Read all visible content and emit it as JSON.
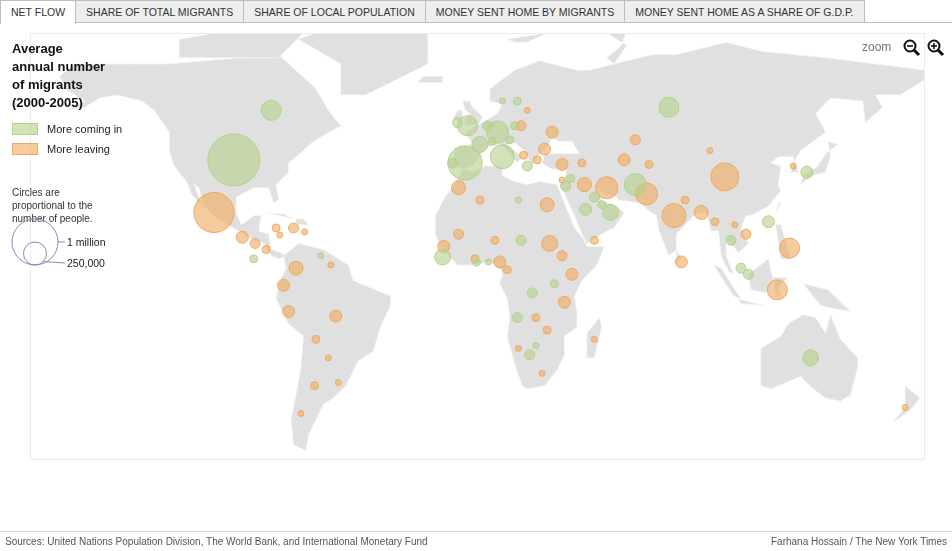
{
  "chart_data": {
    "type": "bubble",
    "title": "Average\nannual number\nof migrants\n(2000-2005)",
    "tabs": [
      "NET FLOW",
      "SHARE OF TOTAL MIGRANTS",
      "SHARE OF LOCAL POPULATION",
      "MONEY SENT HOME BY MIGRANTS",
      "MONEY SENT HOME AS A SHARE OF G.D.P."
    ],
    "zoom_label": "zoom",
    "size_note": "Circles are\nproportional to the\nnumber of people.",
    "size_legend": [
      {
        "value": 1000000,
        "label": "1 million"
      },
      {
        "value": 250000,
        "label": "250,000"
      }
    ],
    "source": "Sources: United Nations Population Division, The World Bank, and International Monetary Fund",
    "credit": "Farhana Hossain / The New York Times",
    "xlim": [
      -180,
      180
    ],
    "ylim": [
      -58,
      80
    ],
    "tick_labels": false,
    "grid": false,
    "legend": "top-left",
    "series": [
      {
        "name": "More coming in",
        "color": "#b5d18a",
        "values": [
          {
            "x": -83,
            "y": 55,
            "size": 190000
          },
          {
            "x": -98,
            "y": 39,
            "size": 1280000
          },
          {
            "x": -5,
            "y": 38,
            "size": 550000
          },
          {
            "x": -4,
            "y": 50,
            "size": 190000
          },
          {
            "x": 1,
            "y": 44,
            "size": 120000
          },
          {
            "x": 8,
            "y": 48,
            "size": 230000
          },
          {
            "x": 10,
            "y": 40,
            "size": 270000
          },
          {
            "x": 77,
            "y": 56,
            "size": 190000
          },
          {
            "x": 4,
            "y": 50,
            "size": 47000
          },
          {
            "x": 6,
            "y": 45,
            "size": 30000
          },
          {
            "x": 13,
            "y": 45.5,
            "size": 30000
          },
          {
            "x": -10,
            "y": 38,
            "size": 47000
          },
          {
            "x": -8,
            "y": 51,
            "size": 47000
          },
          {
            "x": 16,
            "y": 58,
            "size": 30000
          },
          {
            "x": 10,
            "y": 58,
            "size": 17000
          },
          {
            "x": 20,
            "y": 37,
            "size": 47000
          },
          {
            "x": 15,
            "y": 50,
            "size": 30000
          },
          {
            "x": 63.5,
            "y": 31,
            "size": 230000
          },
          {
            "x": 53.5,
            "y": 22,
            "size": 120000
          },
          {
            "x": 47,
            "y": 27,
            "size": 47000
          },
          {
            "x": 35.5,
            "y": 30.5,
            "size": 47000
          },
          {
            "x": 37.5,
            "y": 33,
            "size": 30000
          },
          {
            "x": 43.5,
            "y": 23,
            "size": 68000
          },
          {
            "x": 50,
            "y": 24.5,
            "size": 30000
          },
          {
            "x": 117,
            "y": 19,
            "size": 68000
          },
          {
            "x": 106,
            "y": 4,
            "size": 47000
          },
          {
            "x": 102,
            "y": 13,
            "size": 47000
          },
          {
            "x": 109,
            "y": 2,
            "size": 47000
          },
          {
            "x": 132.5,
            "y": 35,
            "size": 68000
          },
          {
            "x": 134,
            "y": -25,
            "size": 120000
          },
          {
            "x": 16.5,
            "y": 26,
            "size": 17000
          },
          {
            "x": 17.5,
            "y": 13,
            "size": 47000
          },
          {
            "x": -14,
            "y": 7.6,
            "size": 120000
          },
          {
            "x": -0.4,
            "y": 6,
            "size": 30000
          },
          {
            "x": 4.4,
            "y": 6,
            "size": 17000
          },
          {
            "x": 31,
            "y": -1,
            "size": 30000
          },
          {
            "x": 22,
            "y": -4,
            "size": 47000
          },
          {
            "x": 16,
            "y": -12,
            "size": 47000
          },
          {
            "x": 21,
            "y": -24,
            "size": 47000
          },
          {
            "x": 23.5,
            "y": -21,
            "size": 17000
          },
          {
            "x": -90,
            "y": 7,
            "size": 30000
          },
          {
            "x": -63,
            "y": 8,
            "size": 17000
          }
        ]
      },
      {
        "name": "More leaving",
        "color": "#f0a95e",
        "values": [
          {
            "x": -106,
            "y": 22,
            "size": 760000
          },
          {
            "x": -94.6,
            "y": 14,
            "size": 68000
          },
          {
            "x": -89.5,
            "y": 12,
            "size": 47000
          },
          {
            "x": -85,
            "y": 10,
            "size": 30000
          },
          {
            "x": -81,
            "y": 17,
            "size": 30000
          },
          {
            "x": -74,
            "y": 17,
            "size": 47000
          },
          {
            "x": -79.5,
            "y": 14.7,
            "size": 17000
          },
          {
            "x": -69.5,
            "y": 15.7,
            "size": 17000
          },
          {
            "x": -73,
            "y": 4,
            "size": 93000
          },
          {
            "x": -78,
            "y": -1.5,
            "size": 68000
          },
          {
            "x": -76,
            "y": -10,
            "size": 68000
          },
          {
            "x": -57,
            "y": -11.5,
            "size": 68000
          },
          {
            "x": -65,
            "y": -19,
            "size": 30000
          },
          {
            "x": -65.5,
            "y": -34,
            "size": 30000
          },
          {
            "x": -60,
            "y": -25,
            "size": 17000
          },
          {
            "x": -71,
            "y": -43,
            "size": 17000
          },
          {
            "x": -56,
            "y": -33,
            "size": 17000
          },
          {
            "x": -59,
            "y": 5,
            "size": 17000
          },
          {
            "x": -7.6,
            "y": 30,
            "size": 93000
          },
          {
            "x": 1,
            "y": 26,
            "size": 30000
          },
          {
            "x": 28,
            "y": 24.5,
            "size": 93000
          },
          {
            "x": 29,
            "y": 12,
            "size": 120000
          },
          {
            "x": -13.6,
            "y": 11,
            "size": 68000
          },
          {
            "x": -7.6,
            "y": 15,
            "size": 47000
          },
          {
            "x": 9,
            "y": 6,
            "size": 68000
          },
          {
            "x": 7,
            "y": 13,
            "size": 30000
          },
          {
            "x": -1,
            "y": 7,
            "size": 30000
          },
          {
            "x": 34,
            "y": 8,
            "size": 47000
          },
          {
            "x": 38,
            "y": 2,
            "size": 68000
          },
          {
            "x": 35,
            "y": -7,
            "size": 68000
          },
          {
            "x": 28,
            "y": -16,
            "size": 30000
          },
          {
            "x": 23.5,
            "y": -12,
            "size": 30000
          },
          {
            "x": 26,
            "y": -30,
            "size": 17000
          },
          {
            "x": 16.5,
            "y": -22,
            "size": 17000
          },
          {
            "x": 47,
            "y": -19,
            "size": 17000
          },
          {
            "x": 12,
            "y": 3.5,
            "size": 30000
          },
          {
            "x": 52,
            "y": 30,
            "size": 230000
          },
          {
            "x": 68,
            "y": 28,
            "size": 230000
          },
          {
            "x": 79,
            "y": 21,
            "size": 270000
          },
          {
            "x": 99.5,
            "y": 33.5,
            "size": 370000
          },
          {
            "x": 90,
            "y": 22,
            "size": 93000
          },
          {
            "x": 82,
            "y": 6,
            "size": 68000
          },
          {
            "x": 83.5,
            "y": 26,
            "size": 30000
          },
          {
            "x": 125.5,
            "y": 10.5,
            "size": 190000
          },
          {
            "x": 120.6,
            "y": -3,
            "size": 190000
          },
          {
            "x": 108,
            "y": 15,
            "size": 47000
          },
          {
            "x": 95.5,
            "y": 19,
            "size": 30000
          },
          {
            "x": 103.5,
            "y": 18,
            "size": 17000
          },
          {
            "x": 127,
            "y": 37,
            "size": 17000
          },
          {
            "x": 93.5,
            "y": 42,
            "size": 17000
          },
          {
            "x": 59,
            "y": 39,
            "size": 68000
          },
          {
            "x": 63.5,
            "y": 45.5,
            "size": 47000
          },
          {
            "x": 69,
            "y": 37.5,
            "size": 30000
          },
          {
            "x": 34,
            "y": 37.5,
            "size": 68000
          },
          {
            "x": 17.5,
            "y": 50,
            "size": 47000
          },
          {
            "x": 27,
            "y": 42.5,
            "size": 68000
          },
          {
            "x": 24,
            "y": 39,
            "size": 30000
          },
          {
            "x": 30,
            "y": 48,
            "size": 68000
          },
          {
            "x": 20,
            "y": 55,
            "size": 17000
          },
          {
            "x": 18.5,
            "y": 40.5,
            "size": 30000
          },
          {
            "x": 42,
            "y": 38,
            "size": 30000
          },
          {
            "x": 47,
            "y": 13,
            "size": 30000
          },
          {
            "x": 43,
            "y": 31,
            "size": 93000
          },
          {
            "x": 34,
            "y": 32.5,
            "size": 17000
          },
          {
            "x": 172,
            "y": -41,
            "size": 17000
          }
        ]
      }
    ]
  }
}
